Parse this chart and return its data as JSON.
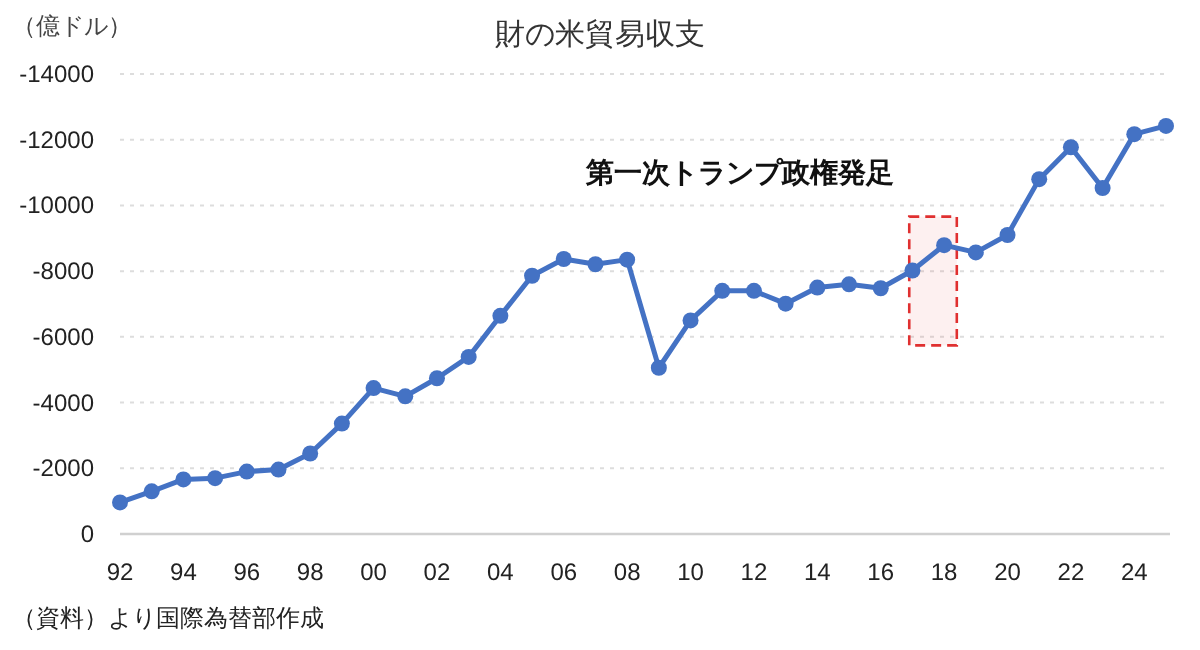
{
  "chart_data": {
    "type": "line",
    "title": "財の米貿易収支",
    "ylabel": "（億ドル）",
    "x": [
      1992,
      1993,
      1994,
      1995,
      1996,
      1997,
      1998,
      1999,
      2000,
      2001,
      2002,
      2003,
      2004,
      2005,
      2006,
      2007,
      2008,
      2009,
      2010,
      2011,
      2012,
      2013,
      2014,
      2015,
      2016,
      2017,
      2018,
      2019,
      2020,
      2021,
      2022,
      2023,
      2024,
      2025
    ],
    "series": [
      {
        "color": "#4472c4",
        "values": [
          -960,
          -1300,
          -1660,
          -1700,
          -1900,
          -1960,
          -2450,
          -3360,
          -4440,
          -4190,
          -4740,
          -5390,
          -6640,
          -7860,
          -8370,
          -8210,
          -8350,
          -5060,
          -6500,
          -7400,
          -7400,
          -7010,
          -7500,
          -7600,
          -7480,
          -8020,
          -8790,
          -8570,
          -9100,
          -10800,
          -11770,
          -10530,
          -12170,
          -12420
        ]
      }
    ],
    "xlim": [
      1992,
      2025
    ],
    "xticks": [
      {
        "value": 1992,
        "label": "92"
      },
      {
        "value": 1994,
        "label": "94"
      },
      {
        "value": 1996,
        "label": "96"
      },
      {
        "value": 1998,
        "label": "98"
      },
      {
        "value": 2000,
        "label": "00"
      },
      {
        "value": 2002,
        "label": "02"
      },
      {
        "value": 2004,
        "label": "04"
      },
      {
        "value": 2006,
        "label": "06"
      },
      {
        "value": 2008,
        "label": "08"
      },
      {
        "value": 2010,
        "label": "10"
      },
      {
        "value": 2012,
        "label": "12"
      },
      {
        "value": 2014,
        "label": "14"
      },
      {
        "value": 2016,
        "label": "16"
      },
      {
        "value": 2018,
        "label": "18"
      },
      {
        "value": 2020,
        "label": "20"
      },
      {
        "value": 2022,
        "label": "22"
      },
      {
        "value": 2024,
        "label": "24"
      }
    ],
    "ylim": [
      0,
      -14000
    ],
    "yticks": [
      0,
      -2000,
      -4000,
      -6000,
      -8000,
      -10000,
      -12000,
      -14000
    ],
    "grid": "y",
    "marker": "circle",
    "line_style": "solid",
    "bands": [
      {
        "axis": "x",
        "from": 2016.9,
        "to": 2018.4,
        "label": "第一次トランプ政権発足",
        "color": "#e03030"
      }
    ],
    "annotations": [
      "（資料）より国際為替部作成"
    ]
  }
}
